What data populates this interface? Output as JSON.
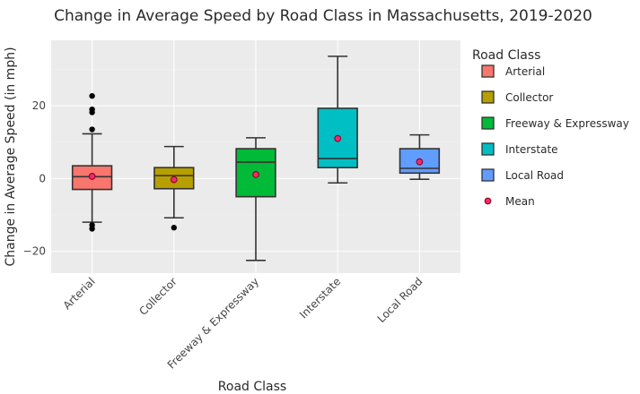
{
  "chart_data": {
    "type": "box",
    "title": "Change in Average Speed by Road Class in Massachusetts, 2019-2020",
    "xlabel": "Road Class",
    "ylabel": "Change in Average Speed (in mph)",
    "categories": [
      "Arterial",
      "Collector",
      "Freeway & Expressway",
      "Interstate",
      "Local Road"
    ],
    "ylim": [
      -26,
      38
    ],
    "yticks": [
      -20,
      0,
      20
    ],
    "grid": true,
    "legend_title": "Road Class",
    "legend_position": "right",
    "mean_label": "Mean",
    "series": [
      {
        "name": "Arterial",
        "color": "#F8766D",
        "min": -12,
        "q1": -3,
        "median": 0.5,
        "q3": 3.5,
        "max": 12.3,
        "mean": 0.6,
        "outliers": [
          22.7,
          19.0,
          18.2,
          13.5,
          -12.8,
          -13.8
        ]
      },
      {
        "name": "Collector",
        "color": "#B79F00",
        "min": -10.8,
        "q1": -2.8,
        "median": 0.8,
        "q3": 3.0,
        "max": 8.8,
        "mean": -0.3,
        "outliers": [
          -13.5
        ]
      },
      {
        "name": "Freeway & Expressway",
        "color": "#00BA38",
        "min": -22.5,
        "q1": -5.0,
        "median": 4.5,
        "q3": 8.2,
        "max": 11.2,
        "mean": 1.1,
        "outliers": []
      },
      {
        "name": "Interstate",
        "color": "#00BFC4",
        "min": -1.2,
        "q1": 3.0,
        "median": 5.5,
        "q3": 19.3,
        "max": 33.6,
        "mean": 11.0,
        "outliers": []
      },
      {
        "name": "Local Road",
        "color": "#619CFF",
        "min": -0.2,
        "q1": 1.5,
        "median": 2.8,
        "q3": 8.2,
        "max": 12.0,
        "mean": 4.6,
        "outliers": []
      }
    ],
    "mean_color": "#F8296D"
  }
}
